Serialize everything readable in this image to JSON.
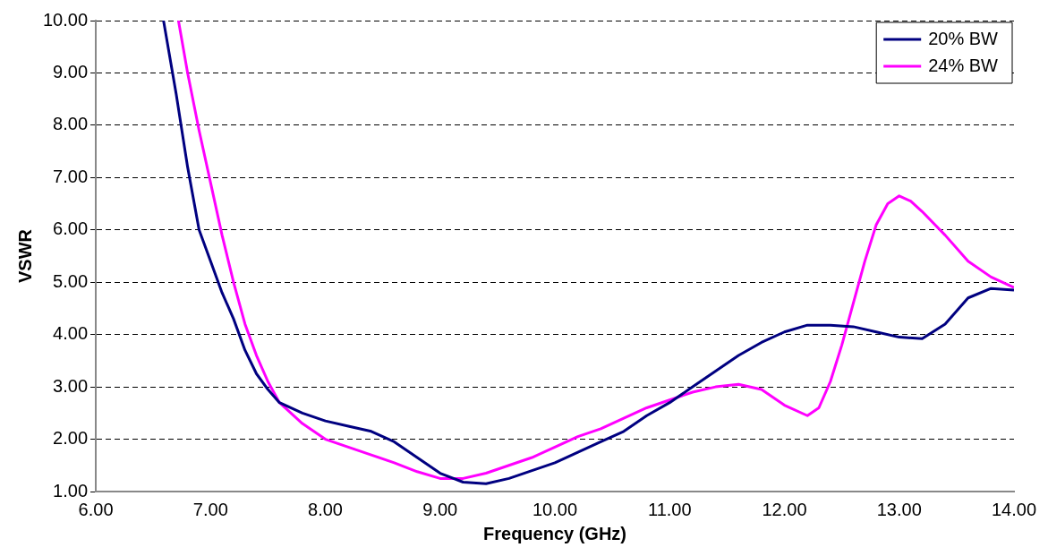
{
  "chart_data": {
    "type": "line",
    "xlabel": "Frequency (GHz)",
    "ylabel": "VSWR",
    "xlim": [
      6,
      14
    ],
    "ylim": [
      1,
      10
    ],
    "xticks": [
      {
        "value": 6,
        "label": "6.00"
      },
      {
        "value": 7,
        "label": "7.00"
      },
      {
        "value": 8,
        "label": "8.00"
      },
      {
        "value": 9,
        "label": "9.00"
      },
      {
        "value": 10,
        "label": "10.00"
      },
      {
        "value": 11,
        "label": "11.00"
      },
      {
        "value": 12,
        "label": "12.00"
      },
      {
        "value": 13,
        "label": "13.00"
      },
      {
        "value": 14,
        "label": "14.00"
      }
    ],
    "yticks": [
      {
        "value": 1,
        "label": "1.00"
      },
      {
        "value": 2,
        "label": "2.00"
      },
      {
        "value": 3,
        "label": "3.00"
      },
      {
        "value": 4,
        "label": "4.00"
      },
      {
        "value": 5,
        "label": "5.00"
      },
      {
        "value": 6,
        "label": "6.00"
      },
      {
        "value": 7,
        "label": "7.00"
      },
      {
        "value": 8,
        "label": "8.00"
      },
      {
        "value": 9,
        "label": "9.00"
      },
      {
        "value": 10,
        "label": "10.00"
      }
    ],
    "grid": "y",
    "legend": "top right",
    "marker": "none",
    "line_style": "solid",
    "series": [
      {
        "name": "20% BW",
        "color": "#000080",
        "x": [
          6.59,
          6.7,
          6.8,
          6.9,
          7.0,
          7.1,
          7.2,
          7.3,
          7.4,
          7.5,
          7.6,
          7.8,
          8.0,
          8.2,
          8.4,
          8.6,
          8.8,
          9.0,
          9.2,
          9.4,
          9.6,
          9.8,
          10.0,
          10.2,
          10.4,
          10.6,
          10.8,
          11.0,
          11.2,
          11.4,
          11.6,
          11.8,
          12.0,
          12.2,
          12.4,
          12.6,
          12.8,
          13.0,
          13.2,
          13.4,
          13.6,
          13.8,
          14.0
        ],
        "values": [
          10,
          8.6,
          7.2,
          6.0,
          5.4,
          4.8,
          4.3,
          3.7,
          3.25,
          2.95,
          2.7,
          2.5,
          2.35,
          2.25,
          2.15,
          1.95,
          1.65,
          1.35,
          1.18,
          1.15,
          1.25,
          1.4,
          1.55,
          1.75,
          1.95,
          2.15,
          2.45,
          2.7,
          3.0,
          3.3,
          3.6,
          3.85,
          4.05,
          4.18,
          4.18,
          4.15,
          4.05,
          3.95,
          3.92,
          4.2,
          4.7,
          4.88,
          4.85
        ]
      },
      {
        "name": "24% BW",
        "color": "#ff00ff",
        "x": [
          6.72,
          6.8,
          6.9,
          7.0,
          7.1,
          7.2,
          7.3,
          7.4,
          7.5,
          7.6,
          7.8,
          8.0,
          8.2,
          8.4,
          8.6,
          8.8,
          9.0,
          9.2,
          9.4,
          9.6,
          9.8,
          10.0,
          10.2,
          10.4,
          10.6,
          10.8,
          11.0,
          11.2,
          11.4,
          11.6,
          11.8,
          12.0,
          12.2,
          12.3,
          12.4,
          12.5,
          12.6,
          12.7,
          12.8,
          12.9,
          13.0,
          13.1,
          13.2,
          13.4,
          13.6,
          13.8,
          14.0
        ],
        "values": [
          10,
          9.0,
          7.9,
          6.9,
          5.9,
          5.0,
          4.2,
          3.6,
          3.1,
          2.7,
          2.3,
          2.0,
          1.85,
          1.7,
          1.55,
          1.38,
          1.25,
          1.25,
          1.35,
          1.5,
          1.65,
          1.85,
          2.05,
          2.2,
          2.4,
          2.6,
          2.75,
          2.9,
          3.0,
          3.05,
          2.95,
          2.65,
          2.45,
          2.6,
          3.1,
          3.8,
          4.6,
          5.4,
          6.1,
          6.5,
          6.65,
          6.55,
          6.35,
          5.9,
          5.4,
          5.1,
          4.9
        ]
      }
    ]
  }
}
